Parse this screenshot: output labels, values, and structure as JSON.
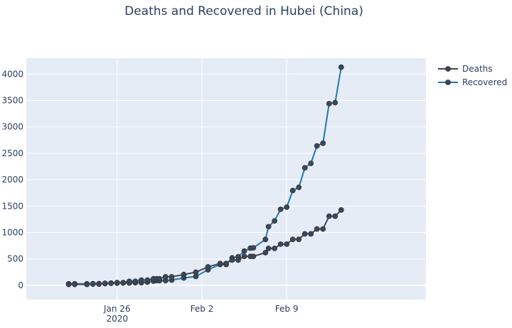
{
  "chart_data": {
    "type": "line",
    "title": "Deaths and Recovered in Hubei (China)",
    "xlabel": "",
    "ylabel": "",
    "ylim": [
      -270,
      4300
    ],
    "xlim": [
      "2020-01-18T12:00",
      "2020-02-20T12:00"
    ],
    "x_ticks": [
      {
        "date": "2020-01-26",
        "label": "Jan 26",
        "sublabel": "2020"
      },
      {
        "date": "2020-02-02",
        "label": "Feb 2",
        "sublabel": ""
      },
      {
        "date": "2020-02-09",
        "label": "Feb 9",
        "sublabel": ""
      }
    ],
    "y_ticks": [
      0,
      500,
      1000,
      1500,
      2000,
      2500,
      3000,
      3500,
      4000
    ],
    "grid": true,
    "legend_position": "top-right",
    "series": [
      {
        "name": "Deaths",
        "color": "#3e4756",
        "points": [
          [
            "2020-01-22T00:00",
            17
          ],
          [
            "2020-01-22T12:00",
            17
          ],
          [
            "2020-01-23T12:00",
            17
          ],
          [
            "2020-01-24T00:00",
            24
          ],
          [
            "2020-01-24T12:00",
            24
          ],
          [
            "2020-01-25T00:00",
            39
          ],
          [
            "2020-01-25T12:00",
            39
          ],
          [
            "2020-01-26T00:00",
            52
          ],
          [
            "2020-01-26T12:00",
            52
          ],
          [
            "2020-01-27T00:00",
            76
          ],
          [
            "2020-01-27T12:00",
            76
          ],
          [
            "2020-01-28T00:00",
            100
          ],
          [
            "2020-01-28T12:00",
            100
          ],
          [
            "2020-01-29T00:00",
            125
          ],
          [
            "2020-01-29T06:00",
            125
          ],
          [
            "2020-01-29T12:00",
            125
          ],
          [
            "2020-01-30T00:00",
            162
          ],
          [
            "2020-01-30T12:00",
            162
          ],
          [
            "2020-01-31T12:00",
            204
          ],
          [
            "2020-02-01T12:00",
            249
          ],
          [
            "2020-02-02T12:00",
            350
          ],
          [
            "2020-02-03T12:00",
            414
          ],
          [
            "2020-02-04T00:00",
            414
          ],
          [
            "2020-02-04T12:00",
            479
          ],
          [
            "2020-02-05T00:00",
            479
          ],
          [
            "2020-02-05T12:00",
            549
          ],
          [
            "2020-02-06T00:00",
            549
          ],
          [
            "2020-02-06T06:00",
            549
          ],
          [
            "2020-02-07T06:00",
            618
          ],
          [
            "2020-02-07T12:00",
            699
          ],
          [
            "2020-02-08T00:00",
            699
          ],
          [
            "2020-02-08T12:00",
            780
          ],
          [
            "2020-02-09T00:00",
            780
          ],
          [
            "2020-02-09T12:00",
            871
          ],
          [
            "2020-02-10T00:00",
            871
          ],
          [
            "2020-02-10T12:00",
            974
          ],
          [
            "2020-02-11T00:00",
            974
          ],
          [
            "2020-02-11T12:00",
            1068
          ],
          [
            "2020-02-12T00:00",
            1068
          ],
          [
            "2020-02-12T12:00",
            1310
          ],
          [
            "2020-02-13T00:00",
            1310
          ],
          [
            "2020-02-13T12:00",
            1426
          ]
        ]
      },
      {
        "name": "Recovered",
        "color": "#1f77b4",
        "points": [
          [
            "2020-01-22T00:00",
            28
          ],
          [
            "2020-01-22T12:00",
            28
          ],
          [
            "2020-01-23T12:00",
            28
          ],
          [
            "2020-01-24T00:00",
            31
          ],
          [
            "2020-01-24T12:00",
            32
          ],
          [
            "2020-01-25T00:00",
            32
          ],
          [
            "2020-01-25T12:00",
            42
          ],
          [
            "2020-01-26T00:00",
            42
          ],
          [
            "2020-01-26T12:00",
            44
          ],
          [
            "2020-01-27T00:00",
            45
          ],
          [
            "2020-01-27T12:00",
            47
          ],
          [
            "2020-01-28T00:00",
            50
          ],
          [
            "2020-01-28T12:00",
            60
          ],
          [
            "2020-01-29T00:00",
            80
          ],
          [
            "2020-01-29T06:00",
            90
          ],
          [
            "2020-01-29T12:00",
            90
          ],
          [
            "2020-01-30T00:00",
            90
          ],
          [
            "2020-01-30T12:00",
            100
          ],
          [
            "2020-01-31T12:00",
            140
          ],
          [
            "2020-02-01T12:00",
            168
          ],
          [
            "2020-02-02T12:00",
            295
          ],
          [
            "2020-02-03T12:00",
            396
          ],
          [
            "2020-02-04T00:00",
            396
          ],
          [
            "2020-02-04T12:00",
            520
          ],
          [
            "2020-02-05T00:00",
            540
          ],
          [
            "2020-02-05T12:00",
            650
          ],
          [
            "2020-02-06T00:00",
            705
          ],
          [
            "2020-02-06T06:00",
            710
          ],
          [
            "2020-02-07T06:00",
            870
          ],
          [
            "2020-02-07T12:00",
            1110
          ],
          [
            "2020-02-08T00:00",
            1220
          ],
          [
            "2020-02-08T12:00",
            1440
          ],
          [
            "2020-02-09T00:00",
            1480
          ],
          [
            "2020-02-09T12:00",
            1795
          ],
          [
            "2020-02-10T00:00",
            1855
          ],
          [
            "2020-02-10T12:00",
            2225
          ],
          [
            "2020-02-11T00:00",
            2310
          ],
          [
            "2020-02-11T12:00",
            2640
          ],
          [
            "2020-02-12T00:00",
            2690
          ],
          [
            "2020-02-12T12:00",
            3440
          ],
          [
            "2020-02-13T00:00",
            3460
          ],
          [
            "2020-02-13T12:00",
            4130
          ]
        ]
      }
    ]
  }
}
